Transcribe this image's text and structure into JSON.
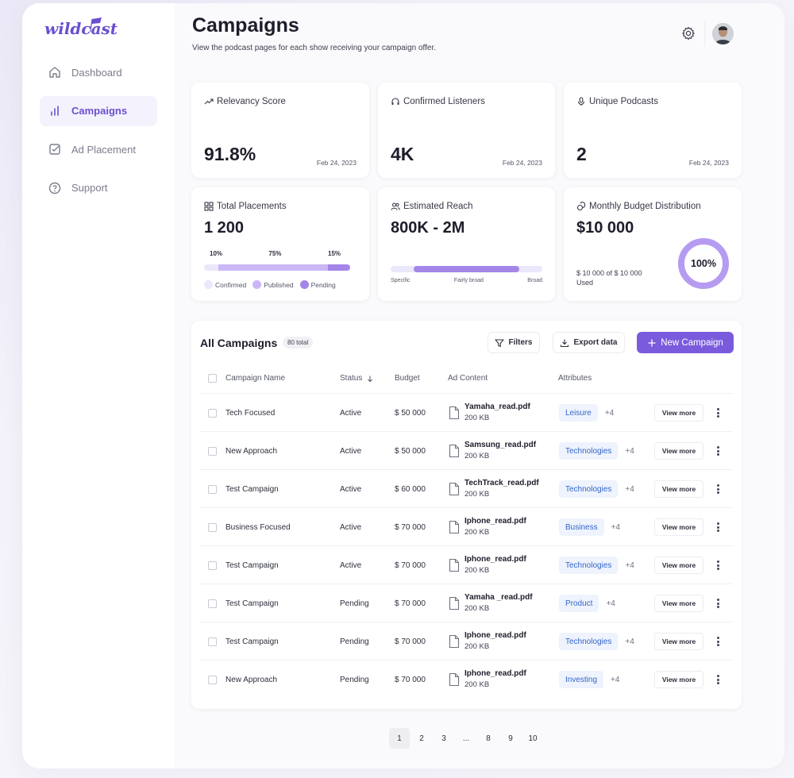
{
  "app": {
    "logo_text": "wildcast"
  },
  "sidebar": {
    "items": [
      {
        "label": "Dashboard",
        "icon": "home-icon",
        "active": false
      },
      {
        "label": "Campaigns",
        "icon": "bar-chart-icon",
        "active": true
      },
      {
        "label": "Ad Placement",
        "icon": "checkbox-icon",
        "active": false
      },
      {
        "label": "Support",
        "icon": "help-icon",
        "active": false
      }
    ]
  },
  "header": {
    "title": "Campaigns",
    "subtitle": "View the podcast pages for each show receiving your campaign offer."
  },
  "stats": {
    "relevancy": {
      "label": "Relevancy Score",
      "value": "91.8%",
      "date": "Feb 24, 2023"
    },
    "listeners": {
      "label": "Confirmed Listeners",
      "value": "4K",
      "date": "Feb 24, 2023"
    },
    "podcasts": {
      "label": "Unique Podcasts",
      "value": "2",
      "date": "Feb 24, 2023"
    },
    "placements": {
      "label": "Total Placements",
      "value": "1 200",
      "segments": [
        {
          "pct_label": "10%",
          "fraction": 0.1,
          "color": "#ece8fb",
          "legend": "Confirmed"
        },
        {
          "pct_label": "75%",
          "fraction": 0.75,
          "color": "#cbb7f5",
          "legend": "Published"
        },
        {
          "pct_label": "15%",
          "fraction": 0.15,
          "color": "#a486e8",
          "legend": "Pending"
        }
      ]
    },
    "reach": {
      "label": "Estimated Reach",
      "value": "800K - 2M",
      "scale": [
        "Specific",
        "Fairly broad",
        "Broad"
      ],
      "range_start": 0.15,
      "range_end": 0.85
    },
    "budget": {
      "label": "Monthly Budget Distribution",
      "value": "$10 000",
      "used_text": "$ 10 000 of $ 10 000",
      "used_label": "Used",
      "percent_label": "100%",
      "fraction": 1.0
    }
  },
  "table": {
    "title": "All Campaigns",
    "count": "80 total",
    "filters_label": "Filters",
    "export_label": "Export data",
    "new_label": "New Campaign",
    "columns": {
      "name": "Campaign Name",
      "status": "Status",
      "budget": "Budget",
      "content": "Ad Content",
      "attributes": "Attributes"
    },
    "view_more_label": "View more",
    "rows": [
      {
        "name": "Tech Focused",
        "status": "Active",
        "budget": "$ 50 000",
        "file": "Yamaha_read.pdf",
        "size": "200 KB",
        "tag": "Leisure",
        "more": "+4"
      },
      {
        "name": "New Approach",
        "status": "Active",
        "budget": "$ 50 000",
        "file": "Samsung_read.pdf",
        "size": "200 KB",
        "tag": "Technologies",
        "more": "+4"
      },
      {
        "name": "Test Campaign",
        "status": "Active",
        "budget": "$ 60 000",
        "file": "TechTrack_read.pdf",
        "size": "200 KB",
        "tag": "Technologies",
        "more": "+4"
      },
      {
        "name": "Business Focused",
        "status": "Active",
        "budget": "$ 70 000",
        "file": "Iphone_read.pdf",
        "size": "200 KB",
        "tag": "Business",
        "more": "+4"
      },
      {
        "name": "Test Campaign",
        "status": "Active",
        "budget": "$ 70 000",
        "file": "Iphone_read.pdf",
        "size": "200 KB",
        "tag": "Technologies",
        "more": "+4"
      },
      {
        "name": "Test Campaign",
        "status": "Pending",
        "budget": "$ 70 000",
        "file": "Yamaha _read.pdf",
        "size": "200 KB",
        "tag": "Product",
        "more": "+4"
      },
      {
        "name": "Test Campaign",
        "status": "Pending",
        "budget": "$ 70 000",
        "file": "Iphone_read.pdf",
        "size": "200 KB",
        "tag": "Technologies",
        "more": "+4"
      },
      {
        "name": "New Approach",
        "status": "Pending",
        "budget": "$ 70 000",
        "file": "Iphone_read.pdf",
        "size": "200 KB",
        "tag": "Investing",
        "more": "+4"
      }
    ]
  },
  "pagination": {
    "pages": [
      "1",
      "2",
      "3",
      "...",
      "8",
      "9",
      "10"
    ],
    "active": "1"
  },
  "colors": {
    "accent": "#7a5bdd",
    "active_status": "#3fa35c",
    "pending_status": "#7a4fd0",
    "tag_text": "#3466c8"
  }
}
